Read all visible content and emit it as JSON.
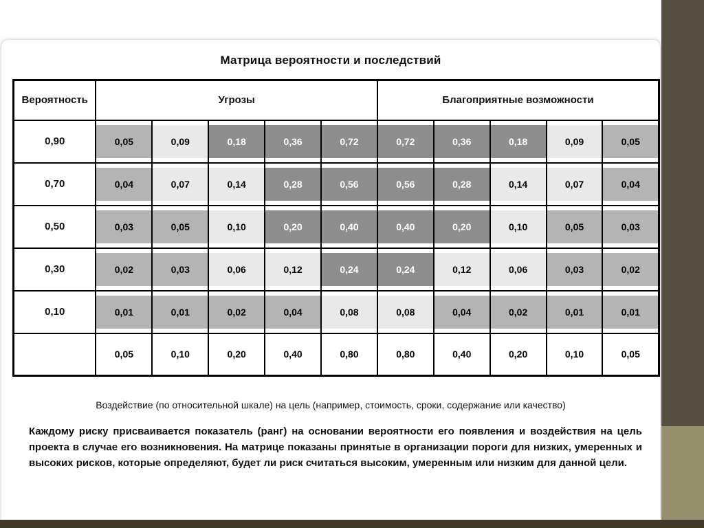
{
  "slide": {
    "title": "Матрица вероятности и последствий",
    "caption": "Воздействие (по относительной шкале) на цель (например, стоимость, сроки, содержание или качество)",
    "paragraph": "Каждому риску присваивается показатель (ранг) на основании вероятности его появления и воздействия на цель проекта в случае его возникновения. На матрице показаны принятые в организации пороги для низких, умеренных и высоких рисков, которые определяют, будет ли риск считаться высоким, умеренным или низким для данной цели."
  },
  "table": {
    "header": {
      "probability": "Вероятность",
      "threats": "Угрозы",
      "opportunities": "Благоприятные возможности"
    },
    "shade_colors": {
      "dark": "#8e8e8e",
      "medium": "#b4b4b4",
      "light": "#e9e9e9",
      "none": "#ffffff"
    },
    "rows": [
      {
        "probability": "0,90",
        "cells": [
          {
            "value": "0,05",
            "shade": "medium"
          },
          {
            "value": "0,09",
            "shade": "light"
          },
          {
            "value": "0,18",
            "shade": "dark"
          },
          {
            "value": "0,36",
            "shade": "dark"
          },
          {
            "value": "0,72",
            "shade": "dark"
          },
          {
            "value": "0,72",
            "shade": "dark"
          },
          {
            "value": "0,36",
            "shade": "dark"
          },
          {
            "value": "0,18",
            "shade": "dark"
          },
          {
            "value": "0,09",
            "shade": "light"
          },
          {
            "value": "0,05",
            "shade": "medium"
          }
        ]
      },
      {
        "probability": "0,70",
        "cells": [
          {
            "value": "0,04",
            "shade": "medium"
          },
          {
            "value": "0,07",
            "shade": "light"
          },
          {
            "value": "0,14",
            "shade": "light"
          },
          {
            "value": "0,28",
            "shade": "dark"
          },
          {
            "value": "0,56",
            "shade": "dark"
          },
          {
            "value": "0,56",
            "shade": "dark"
          },
          {
            "value": "0,28",
            "shade": "dark"
          },
          {
            "value": "0,14",
            "shade": "light"
          },
          {
            "value": "0,07",
            "shade": "light"
          },
          {
            "value": "0,04",
            "shade": "medium"
          }
        ]
      },
      {
        "probability": "0,50",
        "cells": [
          {
            "value": "0,03",
            "shade": "medium"
          },
          {
            "value": "0,05",
            "shade": "medium"
          },
          {
            "value": "0,10",
            "shade": "light"
          },
          {
            "value": "0,20",
            "shade": "dark"
          },
          {
            "value": "0,40",
            "shade": "dark"
          },
          {
            "value": "0,40",
            "shade": "dark"
          },
          {
            "value": "0,20",
            "shade": "dark"
          },
          {
            "value": "0,10",
            "shade": "light"
          },
          {
            "value": "0,05",
            "shade": "medium"
          },
          {
            "value": "0,03",
            "shade": "medium"
          }
        ]
      },
      {
        "probability": "0,30",
        "cells": [
          {
            "value": "0,02",
            "shade": "medium"
          },
          {
            "value": "0,03",
            "shade": "medium"
          },
          {
            "value": "0,06",
            "shade": "light"
          },
          {
            "value": "0,12",
            "shade": "light"
          },
          {
            "value": "0,24",
            "shade": "dark"
          },
          {
            "value": "0,24",
            "shade": "dark"
          },
          {
            "value": "0,12",
            "shade": "light"
          },
          {
            "value": "0,06",
            "shade": "light"
          },
          {
            "value": "0,03",
            "shade": "medium"
          },
          {
            "value": "0,02",
            "shade": "medium"
          }
        ]
      },
      {
        "probability": "0,10",
        "cells": [
          {
            "value": "0,01",
            "shade": "medium"
          },
          {
            "value": "0,01",
            "shade": "medium"
          },
          {
            "value": "0,02",
            "shade": "medium"
          },
          {
            "value": "0,04",
            "shade": "medium"
          },
          {
            "value": "0,08",
            "shade": "light"
          },
          {
            "value": "0,08",
            "shade": "light"
          },
          {
            "value": "0,04",
            "shade": "medium"
          },
          {
            "value": "0,02",
            "shade": "medium"
          },
          {
            "value": "0,01",
            "shade": "medium"
          },
          {
            "value": "0,01",
            "shade": "medium"
          }
        ]
      },
      {
        "probability": "",
        "cells": [
          {
            "value": "0,05",
            "shade": "none"
          },
          {
            "value": "0,10",
            "shade": "none"
          },
          {
            "value": "0,20",
            "shade": "none"
          },
          {
            "value": "0,40",
            "shade": "none"
          },
          {
            "value": "0,80",
            "shade": "none"
          },
          {
            "value": "0,80",
            "shade": "none"
          },
          {
            "value": "0,40",
            "shade": "none"
          },
          {
            "value": "0,20",
            "shade": "none"
          },
          {
            "value": "0,10",
            "shade": "none"
          },
          {
            "value": "0,05",
            "shade": "none"
          }
        ]
      }
    ]
  },
  "colors": {
    "panel_top": "#554e41",
    "panel_bottom": "#97906f",
    "bottom_strip": "#423828"
  }
}
